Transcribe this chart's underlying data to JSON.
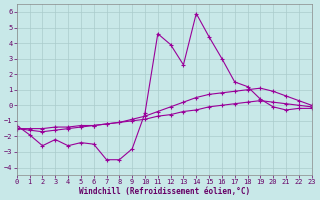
{
  "xlabel": "Windchill (Refroidissement éolien,°C)",
  "background_color": "#c8e8e8",
  "grid_color": "#aacccc",
  "line_color": "#990099",
  "xlim": [
    0,
    23
  ],
  "ylim": [
    -4.5,
    6.5
  ],
  "yticks": [
    -4,
    -3,
    -2,
    -1,
    0,
    1,
    2,
    3,
    4,
    5,
    6
  ],
  "xticks": [
    0,
    1,
    2,
    3,
    4,
    5,
    6,
    7,
    8,
    9,
    10,
    11,
    12,
    13,
    14,
    15,
    16,
    17,
    18,
    19,
    20,
    21,
    22,
    23
  ],
  "series1_x": [
    0,
    1,
    2,
    3,
    4,
    5,
    6,
    7,
    8,
    9,
    10,
    11,
    12,
    13,
    14,
    15,
    16,
    17,
    18,
    19,
    20,
    21,
    22,
    23
  ],
  "series1_y": [
    -1.3,
    -1.9,
    -2.6,
    -2.2,
    -2.6,
    -2.4,
    -2.5,
    -3.5,
    -3.5,
    -2.8,
    -0.5,
    4.6,
    3.9,
    2.6,
    5.9,
    4.4,
    3.0,
    1.5,
    1.2,
    0.4,
    -0.1,
    -0.3,
    -0.2,
    -0.2
  ],
  "series2_x": [
    0,
    1,
    2,
    3,
    4,
    5,
    6,
    7,
    8,
    9,
    10,
    11,
    12,
    13,
    14,
    15,
    16,
    17,
    18,
    19,
    20,
    21,
    22,
    23
  ],
  "series2_y": [
    -1.5,
    -1.6,
    -1.7,
    -1.6,
    -1.5,
    -1.4,
    -1.3,
    -1.2,
    -1.1,
    -0.9,
    -0.7,
    -0.4,
    -0.1,
    0.2,
    0.5,
    0.7,
    0.8,
    0.9,
    1.0,
    1.1,
    0.9,
    0.6,
    0.3,
    0.0
  ],
  "series3_x": [
    0,
    1,
    2,
    3,
    4,
    5,
    6,
    7,
    8,
    9,
    10,
    11,
    12,
    13,
    14,
    15,
    16,
    17,
    18,
    19,
    20,
    21,
    22,
    23
  ],
  "series3_y": [
    -1.5,
    -1.5,
    -1.5,
    -1.4,
    -1.4,
    -1.3,
    -1.3,
    -1.2,
    -1.1,
    -1.0,
    -0.9,
    -0.7,
    -0.6,
    -0.4,
    -0.3,
    -0.1,
    0.0,
    0.1,
    0.2,
    0.3,
    0.2,
    0.1,
    0.0,
    -0.1
  ]
}
